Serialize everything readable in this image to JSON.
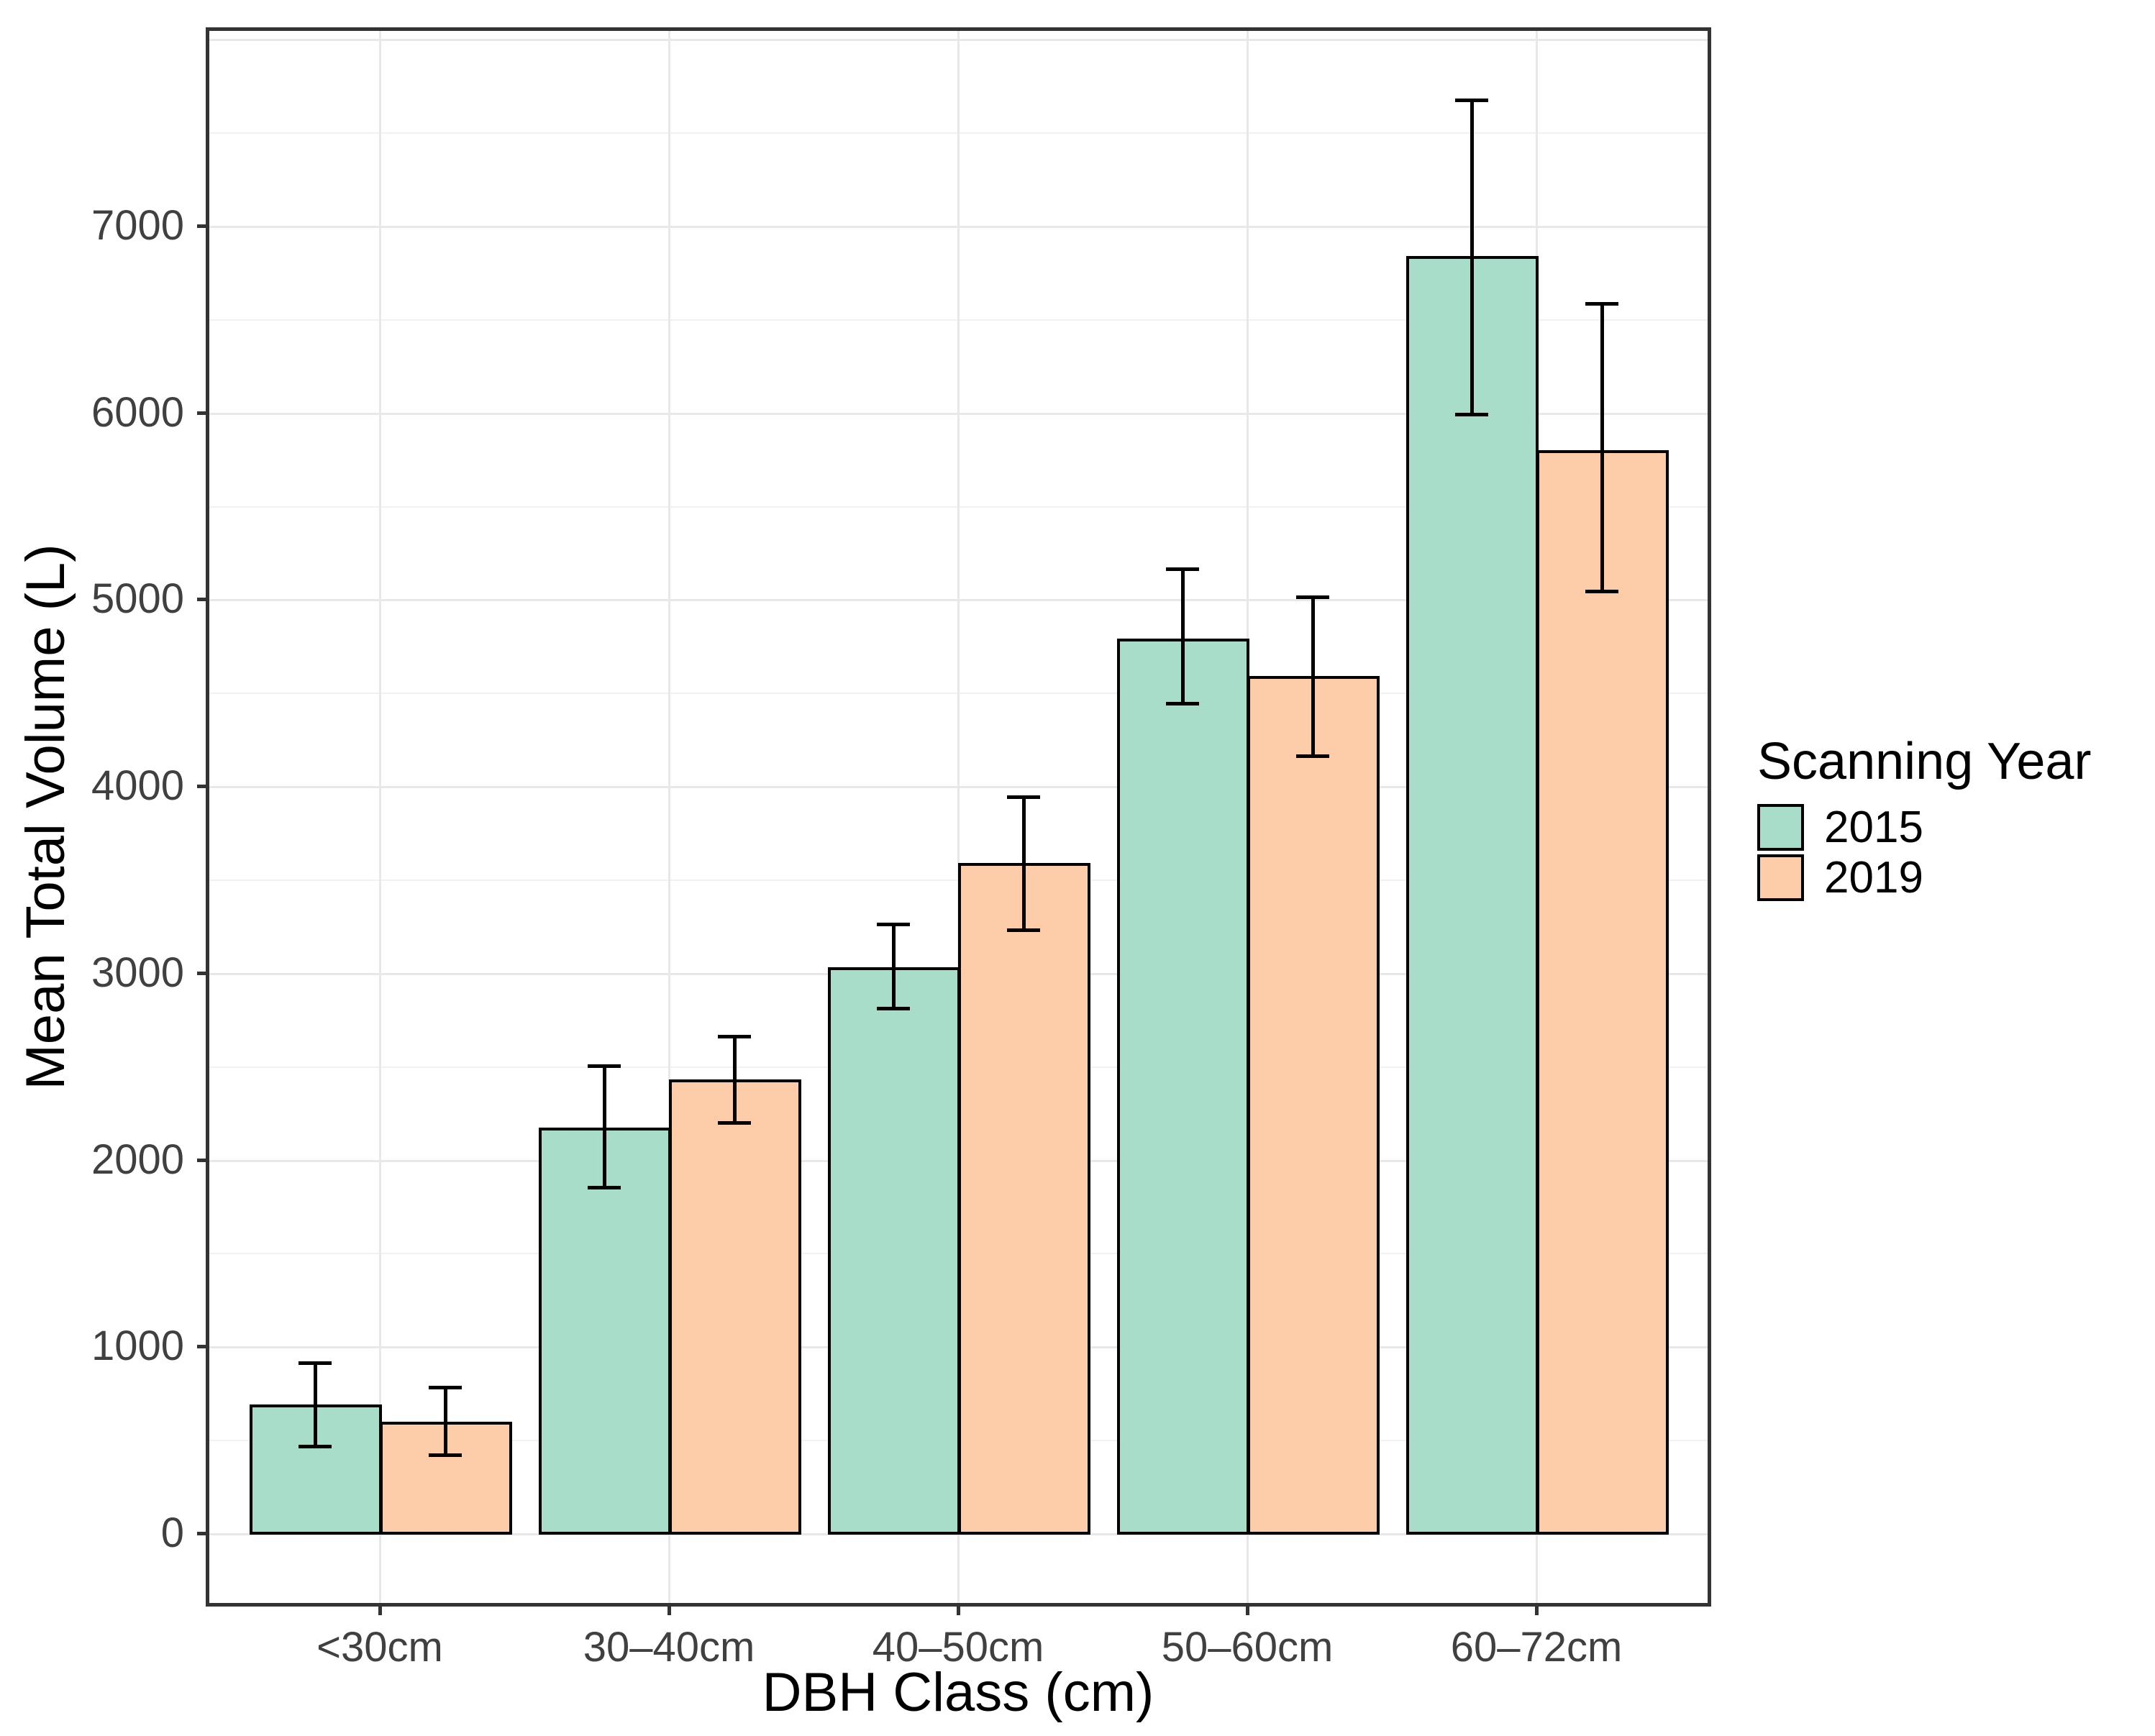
{
  "chart_data": {
    "type": "bar",
    "title": "",
    "xlabel": "DBH Class (cm)",
    "ylabel": "Mean Total Volume  (L)",
    "legend_title": "Scanning Year",
    "legend_position": "right",
    "grid": "major+minor",
    "categories": [
      "<30cm",
      "30–40cm",
      "40–50cm",
      "50–60cm",
      "60–72cm"
    ],
    "series": [
      {
        "name": "2015",
        "color": "#a7ddc9",
        "values": [
          690,
          2170,
          3030,
          4790,
          6840
        ],
        "error_low": [
          455,
          1840,
          2800,
          4430,
          5980
        ],
        "error_high": [
          920,
          2510,
          3270,
          5170,
          7680
        ]
      },
      {
        "name": "2019",
        "color": "#fccda8",
        "values": [
          595,
          2430,
          3590,
          4590,
          5800
        ],
        "error_low": [
          410,
          2190,
          3220,
          4150,
          5030
        ],
        "error_high": [
          790,
          2670,
          3950,
          5020,
          6590
        ]
      }
    ],
    "y_ticks": [
      0,
      1000,
      2000,
      3000,
      4000,
      5000,
      6000,
      7000
    ],
    "y_minor_step": 500,
    "y_gridline_max": 8000,
    "ylim": [
      -385,
      8055
    ],
    "bar_outline_color": "#000000",
    "error_bar_color": "#000000"
  }
}
